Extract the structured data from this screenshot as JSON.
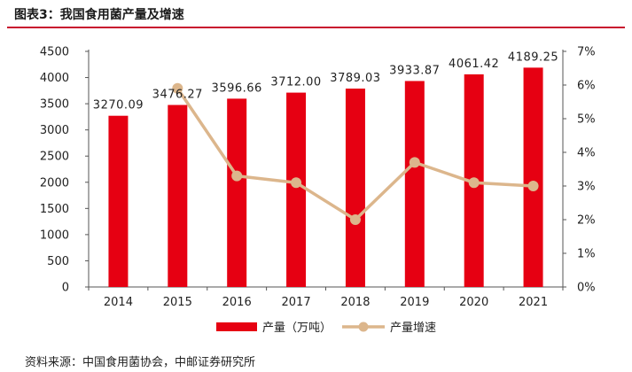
{
  "header": {
    "title": "图表3：我国食用菌产量及增速"
  },
  "footer": {
    "source": "资料来源：中国食用菌协会，中邮证券研究所"
  },
  "colors": {
    "bar": "#e60012",
    "line": "#dcb68c",
    "title_rule": "#c8102e"
  },
  "chart_data": {
    "type": "bar",
    "categories": [
      "2014",
      "2015",
      "2016",
      "2017",
      "2018",
      "2019",
      "2020",
      "2021"
    ],
    "series": [
      {
        "name": "产量（万吨）",
        "kind": "bar",
        "axis": "left",
        "values": [
          3270.09,
          3476.27,
          3596.66,
          3712.0,
          3789.03,
          3933.87,
          4061.42,
          4189.25
        ],
        "labels": [
          "3270.09",
          "3476.27",
          "3596.66",
          "3712.00",
          "3789.03",
          "3933.87",
          "4061.42",
          "4189.25"
        ]
      },
      {
        "name": "产量增速",
        "kind": "line",
        "axis": "right",
        "values": [
          null,
          5.9,
          3.3,
          3.1,
          2.0,
          3.7,
          3.1,
          3.0
        ]
      }
    ],
    "y_left": {
      "min": 0,
      "max": 4500,
      "step": 500,
      "ticks": [
        "0",
        "500",
        "1000",
        "1500",
        "2000",
        "2500",
        "3000",
        "3500",
        "4000",
        "4500"
      ]
    },
    "y_right": {
      "min": 0,
      "max": 7,
      "step": 1,
      "ticks": [
        "0%",
        "1%",
        "2%",
        "3%",
        "4%",
        "5%",
        "6%",
        "7%"
      ]
    },
    "legend": {
      "position": "bottom",
      "items": [
        "产量（万吨）",
        "产量增速"
      ]
    }
  }
}
